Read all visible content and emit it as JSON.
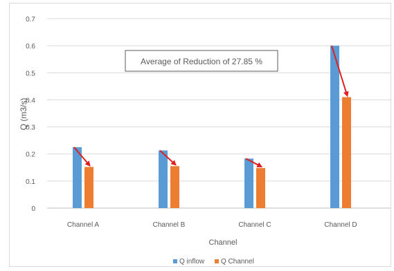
{
  "chart_data": {
    "type": "bar",
    "xlabel": "Channel",
    "ylabel": "Q (m3/s)",
    "ylim": [
      0,
      0.7
    ],
    "yticks": [
      "0",
      "0.1",
      "0.2",
      "0.3",
      "0.4",
      "0.5",
      "0.6",
      "0.7"
    ],
    "grid": true,
    "legend_position": "bottom",
    "categories": [
      "Channel A",
      "Channel B",
      "Channel C",
      "Channel D"
    ],
    "series": [
      {
        "name": "Q inflow",
        "color": "#5b9bd5",
        "values": [
          0.225,
          0.213,
          0.183,
          0.6
        ]
      },
      {
        "name": "Q Channel",
        "color": "#ed7d31",
        "values": [
          0.152,
          0.155,
          0.148,
          0.41
        ]
      }
    ],
    "annotation": {
      "text": "Average of Reduction of 27.85 %"
    },
    "arrow_color": "#e02020"
  }
}
